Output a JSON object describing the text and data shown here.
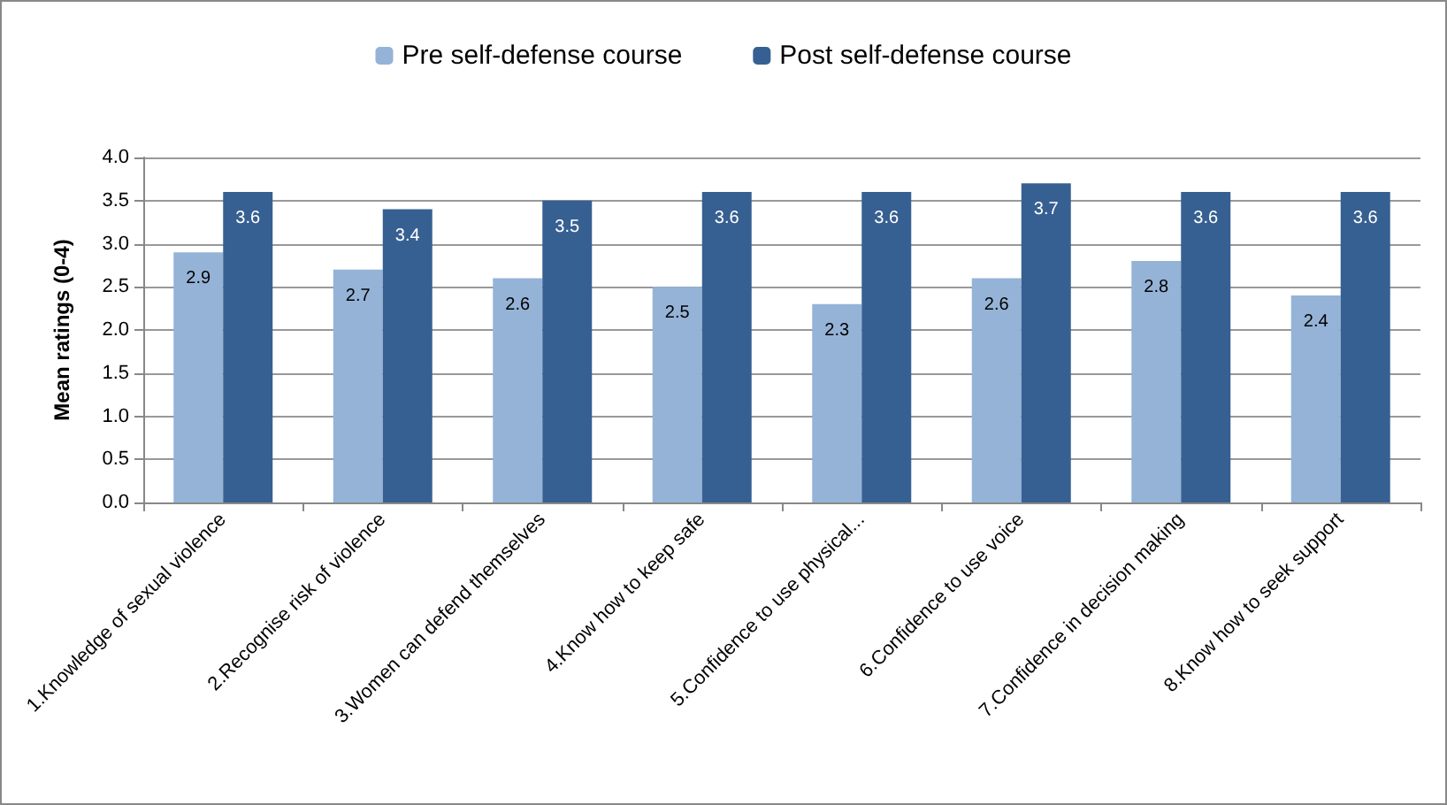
{
  "chart_data": {
    "type": "bar",
    "ylabel": "Mean ratings (0-4)",
    "categories": [
      "1.Knowledge of sexual violence",
      "2.Recognise risk of violence",
      "3.Women can defend themselves",
      "4.Know how to keep safe",
      "5.Confidence to use physical...",
      "6.Confidence to use voice",
      "7.Confidence in decision making",
      "8.Know how to seek support"
    ],
    "series": [
      {
        "name": "Pre self-defense course",
        "color": "#95b3d7",
        "values": [
          2.9,
          2.7,
          2.6,
          2.5,
          2.3,
          2.6,
          2.8,
          2.4
        ]
      },
      {
        "name": "Post self-defense course",
        "color": "#376092",
        "values": [
          3.6,
          3.4,
          3.5,
          3.6,
          3.6,
          3.7,
          3.6,
          3.6
        ]
      }
    ],
    "ylim": [
      0,
      4
    ],
    "yticks": [
      {
        "value": 0,
        "label": "0.0"
      },
      0.5,
      {
        "value": 1,
        "label": "1.0"
      },
      1.5,
      {
        "value": 2,
        "label": "2.0"
      },
      2.5,
      {
        "value": 3,
        "label": "3.0"
      },
      3.5,
      {
        "value": 4,
        "label": "4.0"
      }
    ],
    "grid": "y",
    "legend": "top",
    "data_labels": true
  }
}
